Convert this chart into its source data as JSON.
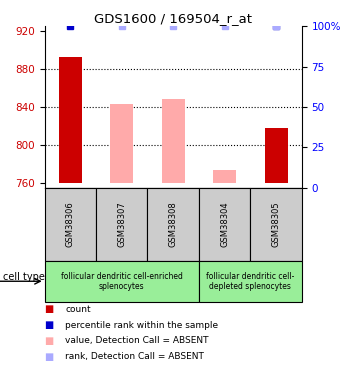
{
  "title": "GDS1600 / 169504_r_at",
  "samples": [
    "GSM38306",
    "GSM38307",
    "GSM38308",
    "GSM38304",
    "GSM38305"
  ],
  "count_values": [
    893,
    null,
    null,
    null,
    818
  ],
  "absent_values": [
    null,
    843,
    848,
    773,
    null
  ],
  "percentile_rank": [
    100,
    null,
    null,
    null,
    100
  ],
  "absent_rank": [
    null,
    100,
    100,
    100,
    100
  ],
  "ylim_left": [
    755,
    925
  ],
  "ylim_right": [
    0,
    100
  ],
  "yticks_left": [
    760,
    800,
    840,
    880,
    920
  ],
  "yticks_right": [
    0,
    25,
    50,
    75,
    100
  ],
  "base_value": 760,
  "bar_width": 0.45,
  "count_color": "#cc0000",
  "absent_bar_color": "#ffaaaa",
  "rank_dot_color": "#0000cc",
  "absent_rank_dot_color": "#aaaaff",
  "tick_box_color": "#cccccc",
  "cell_green": "#99ee99",
  "figsize": [
    3.43,
    3.75
  ],
  "dpi": 100
}
